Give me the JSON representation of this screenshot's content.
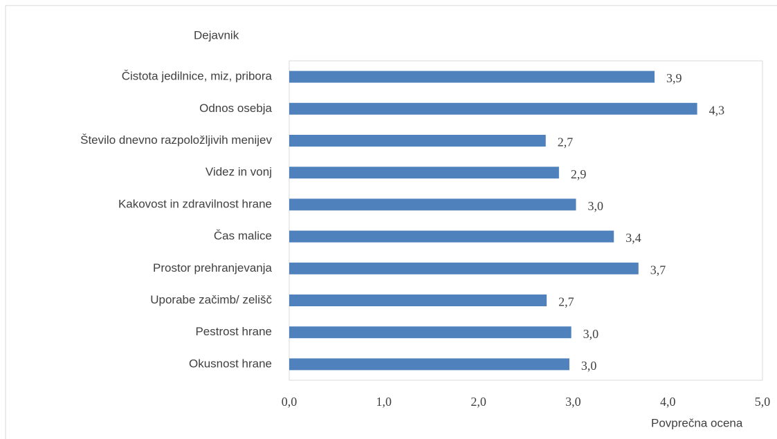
{
  "chart_data": {
    "type": "bar",
    "orientation": "horizontal",
    "y_label": "Dejavnik",
    "x_label": "Povprečna ocena",
    "categories": [
      "Čistota jedilnice, miz, pribora",
      "Odnos osebja",
      "Število dnevno razpoložljivih menijev",
      "Videz in vonj",
      "Kakovost in zdravilnost hrane",
      "Čas malice",
      "Prostor prehranjevanja",
      "Uporabe začimb/ zelišč",
      "Pestrost hrane",
      "Okusnost hrane"
    ],
    "values": [
      3.86,
      4.31,
      2.71,
      2.85,
      3.03,
      3.43,
      3.69,
      2.72,
      2.98,
      2.96
    ],
    "value_labels": [
      "3,9",
      "4,3",
      "2,7",
      "2,9",
      "3,0",
      "3,4",
      "3,7",
      "2,7",
      "3,0",
      "3,0"
    ],
    "color": "#4f81bd",
    "xlim": [
      0,
      5
    ],
    "xticks": [
      {
        "value": 0,
        "label": "0,0"
      },
      {
        "value": 1,
        "label": "1,0"
      },
      {
        "value": 2,
        "label": "2,0"
      },
      {
        "value": 3,
        "label": "3,0"
      },
      {
        "value": 4,
        "label": "4,0"
      },
      {
        "value": 5,
        "label": "5,0"
      }
    ],
    "grid": false
  }
}
